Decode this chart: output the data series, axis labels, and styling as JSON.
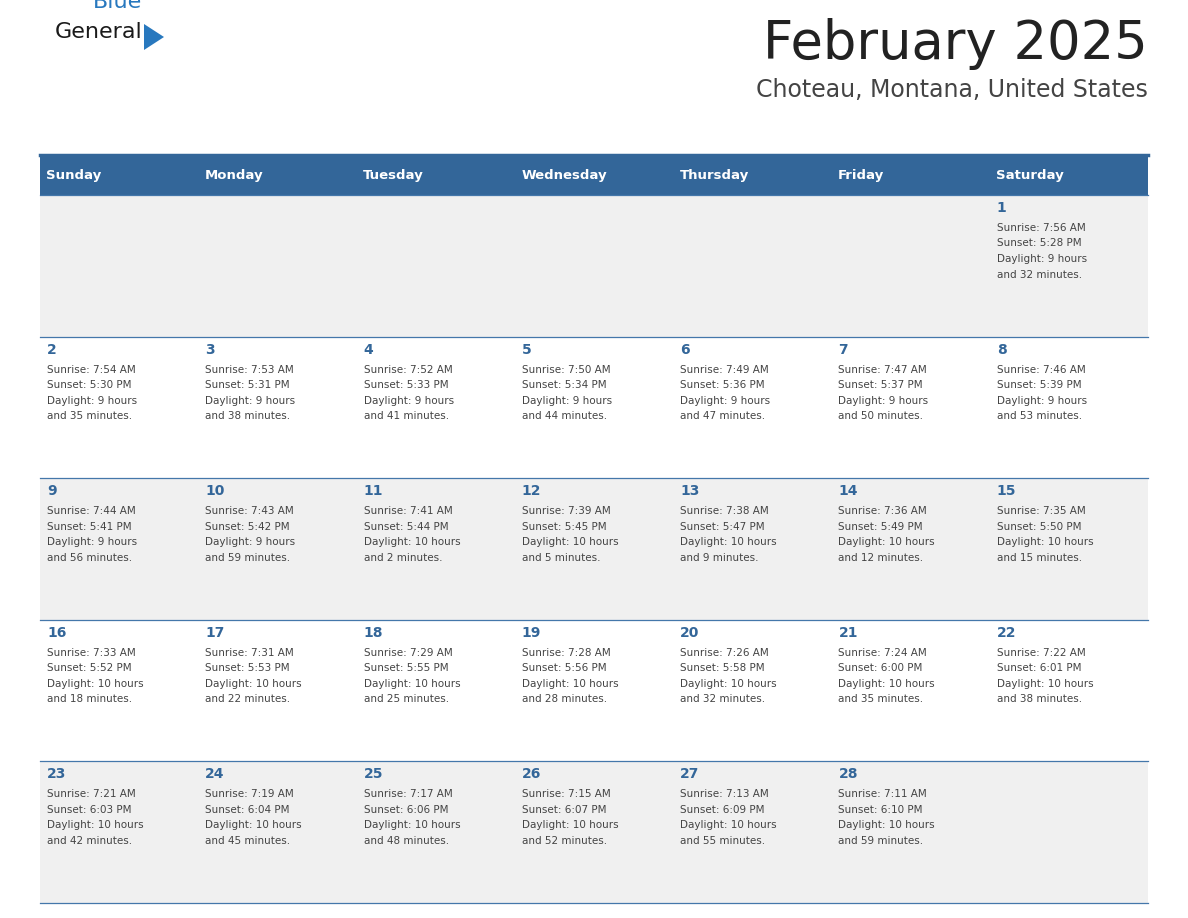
{
  "title": "February 2025",
  "subtitle": "Choteau, Montana, United States",
  "days_of_week": [
    "Sunday",
    "Monday",
    "Tuesday",
    "Wednesday",
    "Thursday",
    "Friday",
    "Saturday"
  ],
  "header_bg": "#336699",
  "header_text": "#FFFFFF",
  "row_bg_even": "#F0F0F0",
  "row_bg_odd": "#FFFFFF",
  "cell_border": "#4477AA",
  "day_num_color": "#336699",
  "info_text_color": "#444444",
  "title_color": "#222222",
  "subtitle_color": "#444444",
  "logo_general_color": "#1a1a1a",
  "logo_blue_color": "#2878BE",
  "calendar_data": [
    {
      "day": 1,
      "col": 6,
      "row": 0,
      "sunrise": "7:56 AM",
      "sunset": "5:28 PM",
      "daylight": "9 hours and 32 minutes"
    },
    {
      "day": 2,
      "col": 0,
      "row": 1,
      "sunrise": "7:54 AM",
      "sunset": "5:30 PM",
      "daylight": "9 hours and 35 minutes"
    },
    {
      "day": 3,
      "col": 1,
      "row": 1,
      "sunrise": "7:53 AM",
      "sunset": "5:31 PM",
      "daylight": "9 hours and 38 minutes"
    },
    {
      "day": 4,
      "col": 2,
      "row": 1,
      "sunrise": "7:52 AM",
      "sunset": "5:33 PM",
      "daylight": "9 hours and 41 minutes"
    },
    {
      "day": 5,
      "col": 3,
      "row": 1,
      "sunrise": "7:50 AM",
      "sunset": "5:34 PM",
      "daylight": "9 hours and 44 minutes"
    },
    {
      "day": 6,
      "col": 4,
      "row": 1,
      "sunrise": "7:49 AM",
      "sunset": "5:36 PM",
      "daylight": "9 hours and 47 minutes"
    },
    {
      "day": 7,
      "col": 5,
      "row": 1,
      "sunrise": "7:47 AM",
      "sunset": "5:37 PM",
      "daylight": "9 hours and 50 minutes"
    },
    {
      "day": 8,
      "col": 6,
      "row": 1,
      "sunrise": "7:46 AM",
      "sunset": "5:39 PM",
      "daylight": "9 hours and 53 minutes"
    },
    {
      "day": 9,
      "col": 0,
      "row": 2,
      "sunrise": "7:44 AM",
      "sunset": "5:41 PM",
      "daylight": "9 hours and 56 minutes"
    },
    {
      "day": 10,
      "col": 1,
      "row": 2,
      "sunrise": "7:43 AM",
      "sunset": "5:42 PM",
      "daylight": "9 hours and 59 minutes"
    },
    {
      "day": 11,
      "col": 2,
      "row": 2,
      "sunrise": "7:41 AM",
      "sunset": "5:44 PM",
      "daylight": "10 hours and 2 minutes"
    },
    {
      "day": 12,
      "col": 3,
      "row": 2,
      "sunrise": "7:39 AM",
      "sunset": "5:45 PM",
      "daylight": "10 hours and 5 minutes"
    },
    {
      "day": 13,
      "col": 4,
      "row": 2,
      "sunrise": "7:38 AM",
      "sunset": "5:47 PM",
      "daylight": "10 hours and 9 minutes"
    },
    {
      "day": 14,
      "col": 5,
      "row": 2,
      "sunrise": "7:36 AM",
      "sunset": "5:49 PM",
      "daylight": "10 hours and 12 minutes"
    },
    {
      "day": 15,
      "col": 6,
      "row": 2,
      "sunrise": "7:35 AM",
      "sunset": "5:50 PM",
      "daylight": "10 hours and 15 minutes"
    },
    {
      "day": 16,
      "col": 0,
      "row": 3,
      "sunrise": "7:33 AM",
      "sunset": "5:52 PM",
      "daylight": "10 hours and 18 minutes"
    },
    {
      "day": 17,
      "col": 1,
      "row": 3,
      "sunrise": "7:31 AM",
      "sunset": "5:53 PM",
      "daylight": "10 hours and 22 minutes"
    },
    {
      "day": 18,
      "col": 2,
      "row": 3,
      "sunrise": "7:29 AM",
      "sunset": "5:55 PM",
      "daylight": "10 hours and 25 minutes"
    },
    {
      "day": 19,
      "col": 3,
      "row": 3,
      "sunrise": "7:28 AM",
      "sunset": "5:56 PM",
      "daylight": "10 hours and 28 minutes"
    },
    {
      "day": 20,
      "col": 4,
      "row": 3,
      "sunrise": "7:26 AM",
      "sunset": "5:58 PM",
      "daylight": "10 hours and 32 minutes"
    },
    {
      "day": 21,
      "col": 5,
      "row": 3,
      "sunrise": "7:24 AM",
      "sunset": "6:00 PM",
      "daylight": "10 hours and 35 minutes"
    },
    {
      "day": 22,
      "col": 6,
      "row": 3,
      "sunrise": "7:22 AM",
      "sunset": "6:01 PM",
      "daylight": "10 hours and 38 minutes"
    },
    {
      "day": 23,
      "col": 0,
      "row": 4,
      "sunrise": "7:21 AM",
      "sunset": "6:03 PM",
      "daylight": "10 hours and 42 minutes"
    },
    {
      "day": 24,
      "col": 1,
      "row": 4,
      "sunrise": "7:19 AM",
      "sunset": "6:04 PM",
      "daylight": "10 hours and 45 minutes"
    },
    {
      "day": 25,
      "col": 2,
      "row": 4,
      "sunrise": "7:17 AM",
      "sunset": "6:06 PM",
      "daylight": "10 hours and 48 minutes"
    },
    {
      "day": 26,
      "col": 3,
      "row": 4,
      "sunrise": "7:15 AM",
      "sunset": "6:07 PM",
      "daylight": "10 hours and 52 minutes"
    },
    {
      "day": 27,
      "col": 4,
      "row": 4,
      "sunrise": "7:13 AM",
      "sunset": "6:09 PM",
      "daylight": "10 hours and 55 minutes"
    },
    {
      "day": 28,
      "col": 5,
      "row": 4,
      "sunrise": "7:11 AM",
      "sunset": "6:10 PM",
      "daylight": "10 hours and 59 minutes"
    }
  ]
}
